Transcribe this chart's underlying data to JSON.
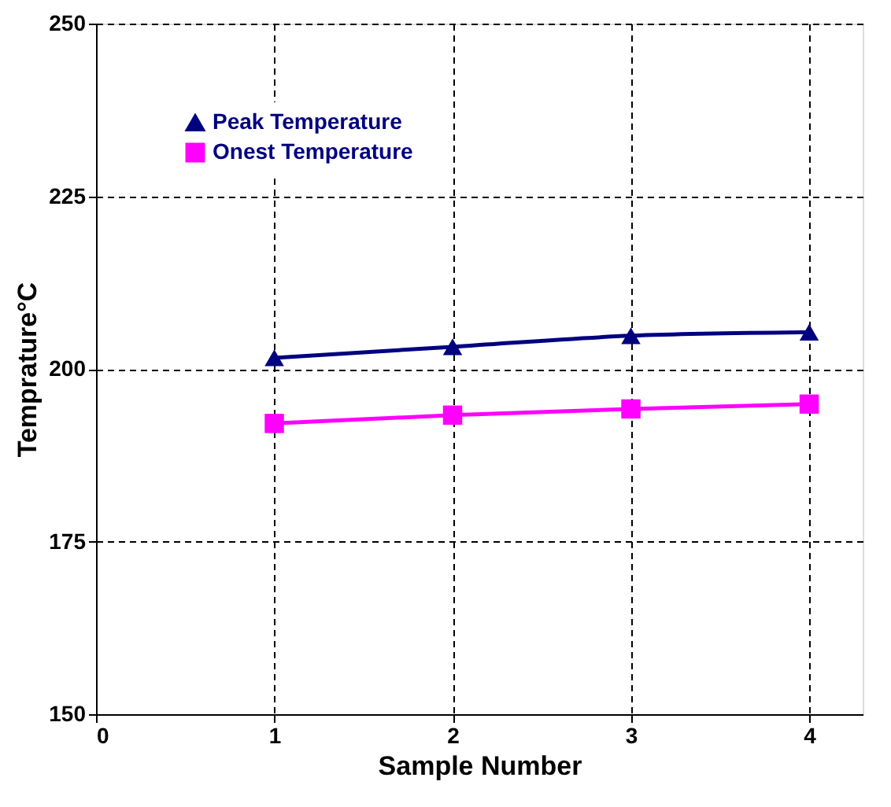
{
  "chart_data": {
    "type": "line",
    "xlabel": "Sample Number",
    "ylabel": "Temprature°C",
    "x": [
      1,
      2,
      3,
      4
    ],
    "series": [
      {
        "name": "Peak Temperature",
        "color": "#000080",
        "marker": "triangle",
        "values": [
          201.6,
          203.2,
          204.8,
          205.3
        ]
      },
      {
        "name": "Onest Temperature",
        "color": "#ff00ff",
        "marker": "square",
        "values": [
          192.1,
          193.3,
          194.2,
          194.9
        ]
      }
    ],
    "xlim": [
      0,
      4.3
    ],
    "xticks": [
      0,
      1,
      2,
      3,
      4
    ],
    "ylim": [
      150,
      250
    ],
    "yticks": [
      150,
      175,
      200,
      225,
      250
    ],
    "grid": true,
    "legend": "top left",
    "line_style": "solid"
  }
}
